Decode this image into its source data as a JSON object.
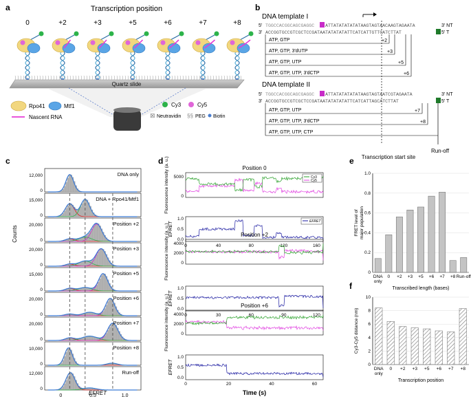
{
  "panel_labels": {
    "a": "a",
    "b": "b",
    "c": "c",
    "d": "d",
    "e": "e",
    "f": "f"
  },
  "panel_a": {
    "title": "Transcription position",
    "positions": [
      "0",
      "+2",
      "+3",
      "+5",
      "+6",
      "+7",
      "+8"
    ],
    "slide_label": "Quartz slide",
    "legend": {
      "rpo41": "Rpo41",
      "mtf1": "Mtf1",
      "cy3": "Cy3",
      "cy5": "Cy5",
      "nascent_rna": "Nascent RNA",
      "neutravidin": "Neutravidin",
      "peg": "PEG",
      "biotin": "Biotin"
    }
  },
  "panel_b": {
    "template1_title": "DNA template  I",
    "template2_title": "DNA template  II",
    "t1_top_prefix": "5′",
    "t1_top_a": "TGGCCACGGCAGCGAGGC",
    "t1_top_b": "ATTATATATATATAAGTAGTAACAAGTAGAATA",
    "t1_top_suffix": "3′ NT",
    "t1_bot_prefix": "3′",
    "t1_bot_a": "ACCGGTGCCGTCGCTCCGATAATATATATATTCATCATTGTTCATCTTAT",
    "t1_bot_suffix": "5′ T",
    "t1_steps": [
      {
        "cond": "ATP, GTP",
        "pos": "+2"
      },
      {
        "cond": "ATP, GTP, 3′dUTP",
        "pos": "+3"
      },
      {
        "cond": "ATP, GTP, UTP",
        "pos": "+5"
      },
      {
        "cond": "ATP, GTP, UTP, 3′dCTP",
        "pos": "+6"
      }
    ],
    "t2_top_prefix": "5′",
    "t2_top_a": "TGGCCACGGCAGCGAGGC",
    "t2_top_b": "ATTATATATATATAAGTAGTAATCGTAGAATA",
    "t2_top_suffix": "3′ NT",
    "t2_bot_prefix": "3′",
    "t2_bot_a": "ACCGGTGCCGTCGCTCCGATAATATATATATTCATCATTAGCATCTTAT",
    "t2_bot_suffix": "5′ T",
    "t2_steps": [
      {
        "cond": "ATP, GTP, UTP",
        "pos": "+7"
      },
      {
        "cond": "ATP, GTP, UTP, 3′dCTP",
        "pos": "+8"
      },
      {
        "cond": "ATP, GTP, UTP, CTP",
        "pos": ""
      }
    ],
    "start_site_label": "Transcription start site",
    "runoff_label": "Run-off"
  },
  "panel_c": {
    "xlabel": "EFRET",
    "ylabel": "Counts",
    "xticks": [
      "0",
      "0.5",
      "1.0"
    ],
    "rows": [
      {
        "label": "DNA only",
        "ytick": "12,000"
      },
      {
        "label": "DNA + Rpo41/Mtf1",
        "ytick": "15,000"
      },
      {
        "label": "Position +2",
        "ytick": "20,000"
      },
      {
        "label": "Position +3",
        "ytick": "20,000"
      },
      {
        "label": "Position +5",
        "ytick": "15,000"
      },
      {
        "label": "Position +6",
        "ytick": "20,000"
      },
      {
        "label": "Position +7",
        "ytick": "20,000"
      },
      {
        "label": "Position +8",
        "ytick": "10,000"
      },
      {
        "label": "Run-off",
        "ytick": "12,000"
      }
    ]
  },
  "panel_d": {
    "titles": [
      "Position 0",
      "Position +2",
      "Position +6"
    ],
    "fluor_label": "Fluorescence intensity (a. u.)",
    "efret_label": "EFRET",
    "legend_cy3": "Cy3",
    "legend_cy5": "Cy5",
    "legend_efret": "EFRET",
    "fluor_yticks": [
      [
        "5000",
        "0"
      ],
      [
        "4000",
        "2000",
        "0"
      ],
      [
        "4000",
        "2000",
        "0"
      ]
    ],
    "efret_yticks": [
      "1.0",
      "0.5",
      "0.0"
    ],
    "xticks": [
      [
        "0",
        "40",
        "80",
        "120",
        "160"
      ],
      [
        "0",
        "30",
        "60",
        "90",
        "120"
      ],
      [
        "0",
        "20",
        "40",
        "60"
      ]
    ],
    "xlabel": "Time (s)"
  },
  "chart_data": [
    {
      "type": "bar",
      "title": "",
      "categories": [
        "DNA only",
        "0",
        "+2",
        "+3",
        "+5",
        "+6",
        "+7",
        "+8",
        "Run-off"
      ],
      "values": [
        0.14,
        0.38,
        0.56,
        0.63,
        0.66,
        0.77,
        0.81,
        0.12,
        0.15
      ],
      "xlabel": "Transcribed length (bases)",
      "ylabel": "FRET level of major population",
      "ylim": [
        0,
        1.0
      ],
      "yticks": [
        "0",
        "0.2",
        "0.4",
        "0.6",
        "0.8",
        "1.0"
      ]
    },
    {
      "type": "bar",
      "title": "",
      "categories": [
        "DNA only",
        "0",
        "+2",
        "+3",
        "+5",
        "+6",
        "+7",
        "+8"
      ],
      "values": [
        8.4,
        6.4,
        5.65,
        5.45,
        5.3,
        5.0,
        4.85,
        8.3
      ],
      "xlabel": "Transcription position",
      "ylabel": "Cy3-Cy5 distance (nm)",
      "ylim": [
        0,
        10
      ],
      "yticks": [
        "0",
        "2",
        "4",
        "6",
        "8",
        "10"
      ]
    }
  ]
}
